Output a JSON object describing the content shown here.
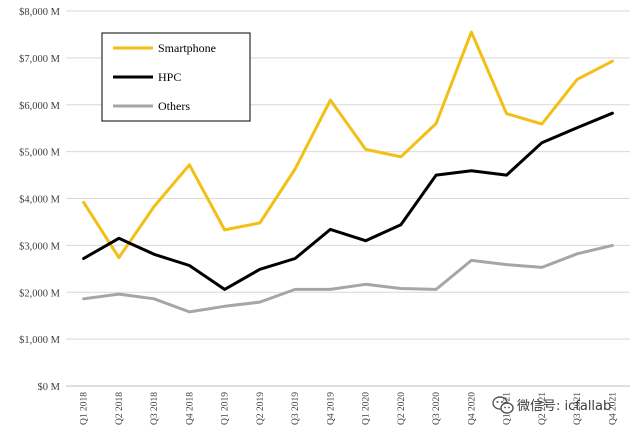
{
  "chart_data": {
    "type": "line",
    "title": "",
    "xlabel": "",
    "ylabel": "",
    "categories": [
      "Q1 2018",
      "Q2 2018",
      "Q3 2018",
      "Q4 2018",
      "Q1 2019",
      "Q2 2019",
      "Q3 2019",
      "Q4 2019",
      "Q1 2020",
      "Q2 2020",
      "Q3 2020",
      "Q4 2020",
      "Q1 2021",
      "Q2 2021",
      "Q3 2021",
      "Q4 2021"
    ],
    "x_tick_labels": [
      "Q1 2018",
      "Q2 2018",
      "Q3 2018",
      "Q4 2018",
      "Q1 2019",
      "Q2 2019",
      "Q3 2019",
      "Q4 2019",
      "Q1 2020",
      "Q2 2020",
      "Q3 2020",
      "Q4 2020",
      "Q1 2021",
      "Q2 2021",
      "Q3 2021",
      "Q4 2021"
    ],
    "ylim": [
      0,
      8000
    ],
    "y_ticks": [
      0,
      1000,
      2000,
      3000,
      4000,
      5000,
      6000,
      7000,
      8000
    ],
    "y_tick_labels": [
      "$0 M",
      "$1,000 M",
      "$2,000 M",
      "$3,000 M",
      "$4,000 M",
      "$5,000 M",
      "$6,000 M",
      "$7,000 M",
      "$8,000 M"
    ],
    "grid": true,
    "legend_position": "top-left",
    "series": [
      {
        "name": "Smartphone",
        "color": "#F2C014",
        "values": [
          3920,
          2740,
          3830,
          4720,
          3330,
          3480,
          4630,
          6100,
          5050,
          4890,
          5600,
          7550,
          5810,
          5590,
          6540,
          6930
        ]
      },
      {
        "name": "HPC",
        "color": "#000000",
        "values": [
          2720,
          3150,
          2810,
          2570,
          2060,
          2490,
          2720,
          3340,
          3100,
          3440,
          4500,
          4590,
          4500,
          5190,
          5510,
          5820
        ]
      },
      {
        "name": "Others",
        "color": "#A6A6A6",
        "values": [
          1860,
          1960,
          1860,
          1580,
          1700,
          1790,
          2060,
          2060,
          2170,
          2080,
          2060,
          2680,
          2590,
          2530,
          2820,
          3000
        ]
      }
    ]
  },
  "watermark": {
    "icon": "wechat-icon",
    "text": "微信号: icfallab"
  }
}
